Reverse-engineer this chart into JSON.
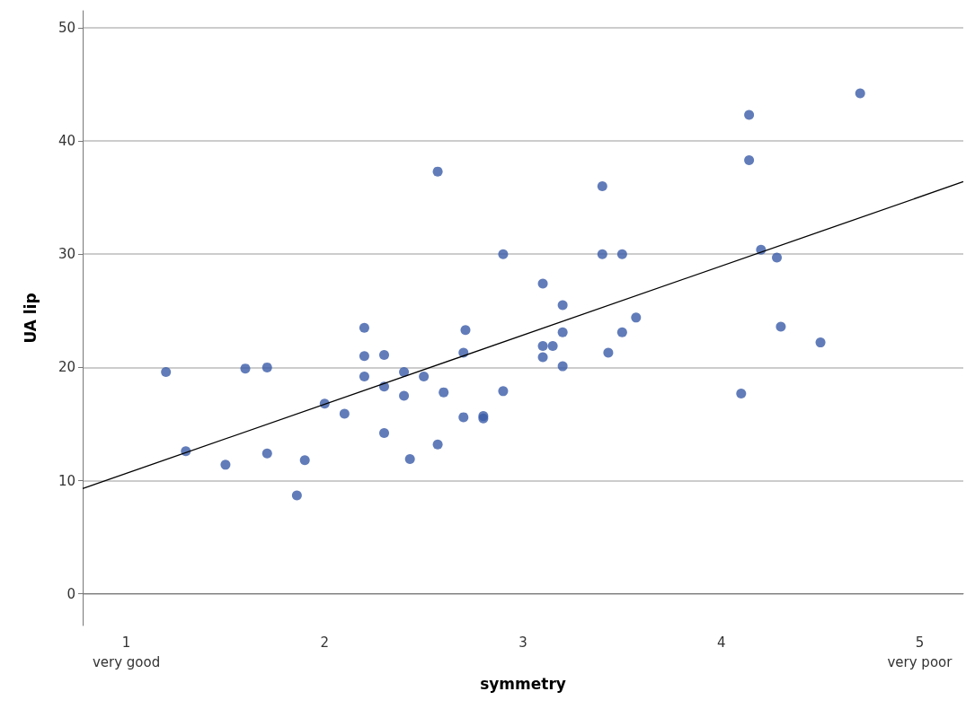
{
  "chart_data": {
    "type": "scatter",
    "xlabel": "symmetry",
    "ylabel": "UA lip",
    "xlim": [
      0.78,
      5.22
    ],
    "ylim": [
      -2.8,
      51.5
    ],
    "xticks": [
      {
        "value": 1,
        "label": "1\nvery good"
      },
      2,
      3,
      4,
      {
        "value": 5,
        "label": "5\nvery poor"
      }
    ],
    "yticks": [
      0,
      10,
      20,
      30,
      40,
      50
    ],
    "grid": "y",
    "legend": false,
    "marker": "circle",
    "series": [
      {
        "color": "#3a5ba8",
        "x": [
          1.2,
          1.3,
          1.5,
          1.6,
          1.71,
          1.71,
          1.86,
          1.9,
          2.0,
          2.1,
          2.2,
          2.2,
          2.2,
          2.3,
          2.3,
          2.3,
          2.4,
          2.4,
          2.43,
          2.5,
          2.57,
          2.57,
          2.6,
          2.7,
          2.71,
          2.7,
          2.8,
          2.8,
          2.9,
          2.9,
          3.1,
          3.1,
          3.1,
          3.15,
          3.2,
          3.2,
          3.2,
          3.4,
          3.4,
          3.43,
          3.5,
          3.5,
          3.57,
          4.1,
          4.14,
          4.14,
          4.2,
          4.28,
          4.3,
          4.5,
          4.7
        ],
        "values": [
          19.6,
          12.6,
          11.4,
          19.9,
          20.0,
          12.4,
          8.7,
          11.8,
          16.8,
          15.9,
          23.5,
          21.0,
          19.2,
          21.1,
          18.3,
          14.2,
          19.6,
          17.5,
          11.9,
          19.2,
          37.3,
          13.2,
          17.8,
          21.3,
          23.3,
          15.6,
          15.7,
          15.5,
          30.0,
          17.9,
          27.4,
          21.9,
          20.9,
          21.9,
          25.5,
          23.1,
          20.1,
          36.0,
          30.0,
          21.3,
          30.0,
          23.1,
          24.4,
          17.7,
          42.3,
          38.3,
          30.4,
          29.7,
          23.6,
          22.2,
          44.2
        ]
      },
      {
        "type": "line",
        "color": "#000000",
        "marker": "none",
        "line_style": "solid",
        "x": [
          0.78,
          5.22
        ],
        "values": [
          9.3,
          36.4
        ]
      }
    ]
  }
}
